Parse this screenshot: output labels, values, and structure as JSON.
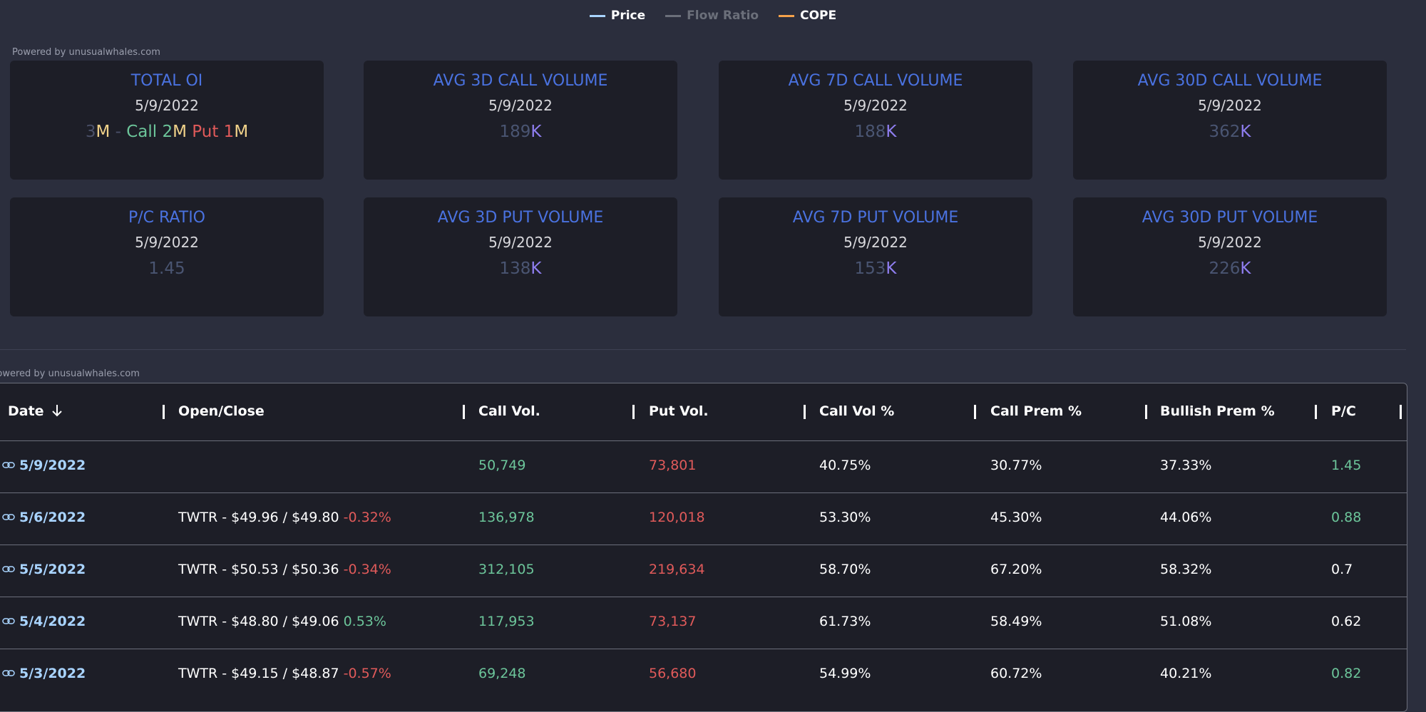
{
  "legend": [
    {
      "name": "Price",
      "color": "#a9d4ff",
      "active": true
    },
    {
      "name": "Flow Ratio",
      "color": "#6b6f7a",
      "active": false
    },
    {
      "name": "COPE",
      "color": "#f5a14a",
      "active": true
    }
  ],
  "powered_top": "Powered by unusualwhales.com",
  "cards": [
    {
      "title": "TOTAL OI",
      "date": "5/9/2022",
      "parts": [
        {
          "text": "3",
          "color": "#4a5068"
        },
        {
          "text": "M",
          "color": "#f2d38a"
        },
        {
          "text": " - ",
          "color": "#4a5068"
        },
        {
          "text": "Call ",
          "color": "#6cc59a"
        },
        {
          "text": "2",
          "color": "#6cc59a"
        },
        {
          "text": "M",
          "color": "#f2d38a"
        },
        {
          "text": " Put ",
          "color": "#e05a5a"
        },
        {
          "text": "1",
          "color": "#e05a5a"
        },
        {
          "text": "M",
          "color": "#f2d38a"
        }
      ]
    },
    {
      "title": "AVG 3D CALL VOLUME",
      "date": "5/9/2022",
      "parts": [
        {
          "text": "189",
          "color": "#4a5572"
        },
        {
          "text": "K",
          "color": "#8f7ef0"
        }
      ]
    },
    {
      "title": "AVG 7D CALL VOLUME",
      "date": "5/9/2022",
      "parts": [
        {
          "text": "188",
          "color": "#4a5572"
        },
        {
          "text": "K",
          "color": "#8f7ef0"
        }
      ]
    },
    {
      "title": "AVG 30D CALL VOLUME",
      "date": "5/9/2022",
      "parts": [
        {
          "text": "362",
          "color": "#4a5572"
        },
        {
          "text": "K",
          "color": "#8f7ef0"
        }
      ]
    },
    {
      "title": "P/C RATIO",
      "date": "5/9/2022",
      "parts": [
        {
          "text": "1.45",
          "color": "#4a5572"
        }
      ]
    },
    {
      "title": "AVG 3D PUT VOLUME",
      "date": "5/9/2022",
      "parts": [
        {
          "text": "138",
          "color": "#4a5572"
        },
        {
          "text": "K",
          "color": "#8f7ef0"
        }
      ]
    },
    {
      "title": "AVG 7D PUT VOLUME",
      "date": "5/9/2022",
      "parts": [
        {
          "text": "153",
          "color": "#4a5572"
        },
        {
          "text": "K",
          "color": "#8f7ef0"
        }
      ]
    },
    {
      "title": "AVG 30D PUT VOLUME",
      "date": "5/9/2022",
      "parts": [
        {
          "text": "226",
          "color": "#4a5572"
        },
        {
          "text": "K",
          "color": "#8f7ef0"
        }
      ]
    }
  ],
  "powered_table": "Powered by unusualwhales.com",
  "table": {
    "headers": [
      "Date",
      "Open/Close",
      "Call Vol.",
      "Put Vol.",
      "Call Vol %",
      "Call Prem %",
      "Bullish Prem %",
      "P/C"
    ],
    "rows": [
      {
        "date": "5/9/2022",
        "open_close": "",
        "change": "",
        "call_vol": "50,749",
        "put_vol": "73,801",
        "call_vol_pct": "40.75%",
        "call_prem_pct": "30.77%",
        "bullish_prem_pct": "37.33%",
        "pc": "1.45",
        "pc_color": "#6cc59a"
      },
      {
        "date": "5/6/2022",
        "open_close": "TWTR - $49.96 / $49.80",
        "change": "-0.32%",
        "call_vol": "136,978",
        "put_vol": "120,018",
        "call_vol_pct": "53.30%",
        "call_prem_pct": "45.30%",
        "bullish_prem_pct": "44.06%",
        "pc": "0.88",
        "pc_color": "#6cc59a"
      },
      {
        "date": "5/5/2022",
        "open_close": "TWTR - $50.53 / $50.36",
        "change": "-0.34%",
        "call_vol": "312,105",
        "put_vol": "219,634",
        "call_vol_pct": "58.70%",
        "call_prem_pct": "67.20%",
        "bullish_prem_pct": "58.32%",
        "pc": "0.7",
        "pc_color": "#ffffff"
      },
      {
        "date": "5/4/2022",
        "open_close": "TWTR - $48.80 / $49.06",
        "change": "0.53%",
        "call_vol": "117,953",
        "put_vol": "73,137",
        "call_vol_pct": "61.73%",
        "call_prem_pct": "58.49%",
        "bullish_prem_pct": "51.08%",
        "pc": "0.62",
        "pc_color": "#ffffff"
      },
      {
        "date": "5/3/2022",
        "open_close": "TWTR - $49.15 / $48.87",
        "change": "-0.57%",
        "call_vol": "69,248",
        "put_vol": "56,680",
        "call_vol_pct": "54.99%",
        "call_prem_pct": "60.72%",
        "bullish_prem_pct": "40.21%",
        "pc": "0.82",
        "pc_color": "#6cc59a"
      }
    ]
  }
}
